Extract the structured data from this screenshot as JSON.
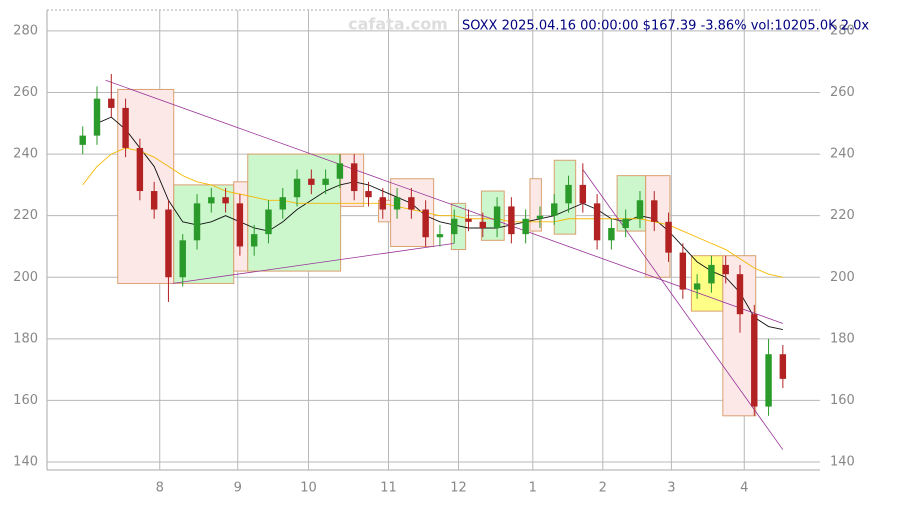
{
  "chart_data": {
    "type": "candlestick",
    "title": "SOXX 2025.04.16 00:00:00 $167.39 -3.86% vol:10205.0K 2.0x",
    "watermark": "cafata.com",
    "up_color": "#2a9a2a",
    "down_color": "#b22222",
    "x": [
      0,
      1,
      2,
      3,
      4,
      5,
      6,
      7,
      8,
      9,
      10,
      11,
      12,
      13,
      14,
      15,
      16,
      17,
      18,
      19,
      20,
      21,
      22,
      23,
      24,
      25,
      26,
      27,
      28,
      29,
      30,
      31,
      32,
      33,
      34,
      35,
      36,
      37,
      38,
      39,
      40,
      41,
      42,
      43,
      44,
      45,
      46,
      47,
      48,
      49
    ],
    "open": [
      243,
      246,
      258,
      255,
      242,
      228,
      222,
      200,
      212,
      224,
      226,
      224,
      210,
      214,
      222,
      226,
      232,
      230,
      232,
      237,
      228,
      226,
      222,
      226,
      222,
      213,
      214,
      219,
      218,
      216,
      223,
      214,
      219,
      220,
      224,
      230,
      224,
      212,
      216,
      219,
      225,
      218,
      208,
      196,
      198,
      204,
      201,
      188,
      158,
      175
    ],
    "high": [
      249,
      262,
      266,
      258,
      245,
      231,
      225,
      214,
      227,
      229,
      229,
      227,
      217,
      225,
      229,
      235,
      235,
      235,
      240,
      240,
      231,
      229,
      229,
      229,
      225,
      217,
      222,
      222,
      221,
      226,
      226,
      222,
      223,
      227,
      233,
      237,
      227,
      219,
      222,
      228,
      228,
      221,
      211,
      201,
      207,
      207,
      204,
      191,
      180,
      178
    ],
    "low": [
      240,
      243,
      252,
      239,
      225,
      219,
      192,
      197,
      209,
      221,
      221,
      207,
      207,
      211,
      219,
      223,
      227,
      227,
      229,
      225,
      223,
      219,
      219,
      219,
      210,
      210,
      211,
      215,
      213,
      213,
      211,
      211,
      216,
      217,
      221,
      221,
      209,
      209,
      213,
      216,
      215,
      205,
      193,
      193,
      195,
      198,
      182,
      155,
      155,
      164
    ],
    "close": [
      246,
      258,
      255,
      242,
      228,
      222,
      200,
      212,
      224,
      226,
      224,
      210,
      214,
      222,
      226,
      232,
      230,
      232,
      237,
      228,
      226,
      222,
      226,
      222,
      213,
      214,
      219,
      218,
      216,
      223,
      214,
      219,
      220,
      224,
      230,
      224,
      212,
      216,
      219,
      225,
      218,
      208,
      196,
      198,
      204,
      201,
      188,
      158,
      175,
      167
    ],
    "averages": [
      {
        "color": "#111111",
        "values": [
          null,
          250,
          252,
          248,
          242,
          236,
          225,
          218,
          217,
          218,
          220,
          218,
          216,
          215,
          218,
          222,
          225,
          228,
          230,
          231,
          230,
          228,
          226,
          224,
          220,
          218,
          217,
          216,
          216,
          216,
          217,
          218,
          219,
          220,
          222,
          224,
          222,
          219,
          218,
          220,
          219,
          215,
          210,
          205,
          202,
          200,
          195,
          187,
          184,
          183
        ]
      },
      {
        "color": "#f5b800",
        "values": [
          230,
          236,
          240,
          242,
          241,
          239,
          236,
          233,
          231,
          230,
          228,
          227,
          226,
          225,
          225,
          224,
          224,
          224,
          224,
          224,
          224,
          224,
          223,
          222,
          221,
          220,
          220,
          219,
          219,
          219,
          218,
          218,
          218,
          218,
          219,
          219,
          219,
          219,
          219,
          219,
          218,
          217,
          215,
          213,
          211,
          209,
          206,
          203,
          201,
          200
        ]
      }
    ],
    "boxes": [
      {
        "x": [
          2.45,
          6.37
        ],
        "range": [
          198,
          261
        ],
        "color": "#fde8e8"
      },
      {
        "x": [
          6.37,
          10.57
        ],
        "range": [
          198,
          230
        ],
        "color": "#ccf7cc"
      },
      {
        "x": [
          10.57,
          11.55
        ],
        "range": [
          202,
          231
        ],
        "color": "#fde8e8"
      },
      {
        "x": [
          11.55,
          18.05
        ],
        "range": [
          202,
          240
        ],
        "color": "#ccf7cc"
      },
      {
        "x": [
          18.05,
          19.66
        ],
        "range": [
          223,
          240
        ],
        "color": "#fde8e8"
      },
      {
        "x": [
          20.7,
          21.55
        ],
        "range": [
          218,
          225
        ],
        "color": "#fde8e8"
      },
      {
        "x": [
          21.55,
          24.56
        ],
        "range": [
          210,
          232
        ],
        "color": "#fde8e8"
      },
      {
        "x": [
          25.8,
          26.8
        ],
        "range": [
          209,
          224
        ],
        "color": "#ccf7cc"
      },
      {
        "x": [
          27.9,
          29.5
        ],
        "range": [
          212,
          228
        ],
        "color": "#ccf7cc"
      },
      {
        "x": [
          31.3,
          32.1
        ],
        "range": [
          215,
          232
        ],
        "color": "#fde8e8"
      },
      {
        "x": [
          33,
          34.5
        ],
        "range": [
          214,
          238
        ],
        "color": "#ccf7cc"
      },
      {
        "x": [
          37.4,
          39.4
        ],
        "range": [
          215,
          233
        ],
        "color": "#ccf7cc"
      },
      {
        "x": [
          39.4,
          41.1
        ],
        "range": [
          200,
          233
        ],
        "color": "#fde8e8"
      },
      {
        "x": [
          42.6,
          44.8
        ],
        "range": [
          189,
          207
        ],
        "color": "#ffff88"
      },
      {
        "x": [
          44.8,
          47.1
        ],
        "range": [
          155,
          207
        ],
        "color": "#fde8e8"
      }
    ],
    "trendlines": [
      {
        "x": [
          1.6,
          49
        ],
        "y": [
          264,
          185
        ],
        "color": "#993399"
      },
      {
        "x": [
          6.3,
          26
        ],
        "y": [
          198,
          211
        ],
        "color": "#993399"
      },
      {
        "x": [
          35,
          49
        ],
        "y": [
          235,
          144
        ],
        "color": "#993399"
      }
    ],
    "xlim": [
      -2.5,
      51.6
    ],
    "ylim": [
      137.4,
      286.8
    ],
    "xticks": [
      {
        "value": 5.39,
        "label": "8"
      },
      {
        "value": 10.85,
        "label": "9"
      },
      {
        "value": 15.8,
        "label": "10"
      },
      {
        "value": 21.4,
        "label": "11"
      },
      {
        "value": 26.3,
        "label": "12"
      },
      {
        "value": 31.5,
        "label": "1"
      },
      {
        "value": 36.4,
        "label": "2"
      },
      {
        "value": 41.2,
        "label": "3"
      },
      {
        "value": 46.3,
        "label": "4"
      }
    ],
    "yticks": [
      140,
      160,
      180,
      200,
      220,
      240,
      260,
      280
    ],
    "grid": true
  }
}
